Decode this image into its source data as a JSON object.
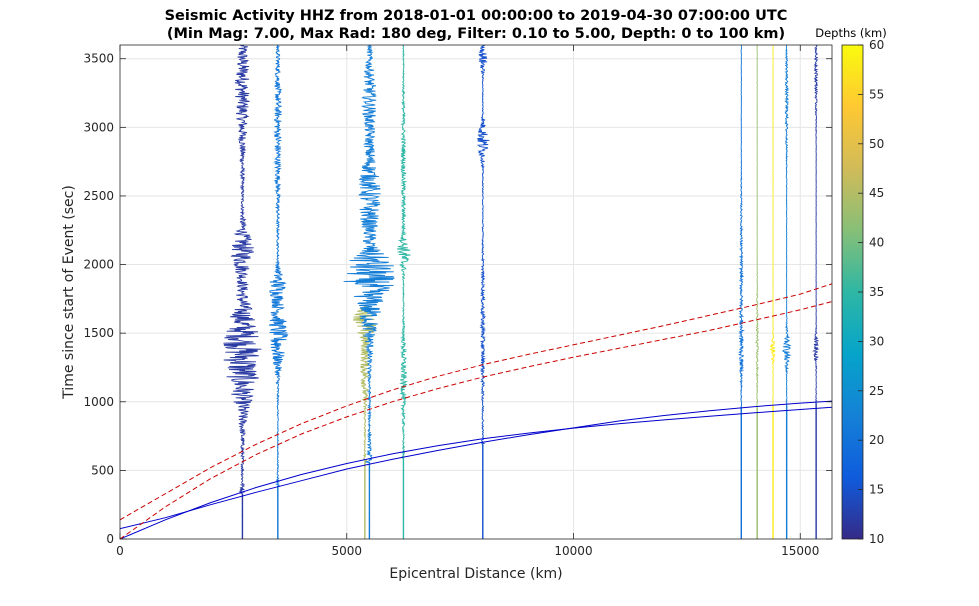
{
  "chart_data": {
    "type": "line",
    "title": "Seismic Activity HHZ from 2018-01-01 00:00:00 to 2019-04-30 07:00:00 UTC",
    "subtitle": "(Min Mag: 7.00, Max Rad: 180 deg, Filter: 0.10 to 5.00, Depth: 0 to 100 km)",
    "xlabel": "Epicentral Distance (km)",
    "ylabel": "Time since start of Event (sec)",
    "xlim": [
      0,
      15700
    ],
    "ylim": [
      0,
      3600
    ],
    "xticks": [
      0,
      5000,
      10000,
      15000
    ],
    "yticks": [
      0,
      500,
      1000,
      1500,
      2000,
      2500,
      3000,
      3500
    ],
    "grid": true,
    "colorbar": {
      "label": "Depths (km)",
      "range": [
        10,
        60
      ],
      "ticks": [
        10,
        15,
        20,
        25,
        30,
        35,
        40,
        45,
        50,
        55,
        60
      ],
      "colormap": "parula"
    },
    "traces": [
      {
        "distance_km": 2700,
        "depth_km": 12,
        "arrival_s": 330,
        "end_s": 3600,
        "amp_km": 420,
        "bursts": [
          [
            1350,
            380,
            1.0
          ],
          [
            2100,
            170,
            0.55
          ],
          [
            3300,
            450,
            0.35
          ]
        ]
      },
      {
        "distance_km": 3480,
        "depth_km": 21,
        "arrival_s": 390,
        "end_s": 3600,
        "amp_km": 230,
        "bursts": [
          [
            1500,
            250,
            0.9
          ],
          [
            1850,
            100,
            0.7
          ],
          [
            3000,
            600,
            0.3
          ]
        ]
      },
      {
        "distance_km": 5400,
        "depth_km": 45,
        "arrival_s": 560,
        "end_s": 1700,
        "amp_km": 260,
        "bursts": [
          [
            1580,
            110,
            1.0
          ],
          [
            1250,
            250,
            0.35
          ]
        ]
      },
      {
        "distance_km": 5500,
        "depth_km": 22,
        "arrival_s": 560,
        "end_s": 3600,
        "amp_km": 520,
        "bursts": [
          [
            1950,
            130,
            1.0
          ],
          [
            1750,
            300,
            0.5
          ],
          [
            2500,
            300,
            0.45
          ],
          [
            3200,
            300,
            0.25
          ]
        ]
      },
      {
        "distance_km": 6250,
        "depth_km": 35,
        "arrival_s": 590,
        "end_s": 3600,
        "amp_km": 200,
        "bursts": [
          [
            2080,
            100,
            0.75
          ],
          [
            1200,
            300,
            0.3
          ],
          [
            2700,
            500,
            0.2
          ]
        ]
      },
      {
        "distance_km": 8000,
        "depth_km": 15,
        "arrival_s": 690,
        "end_s": 3600,
        "amp_km": 180,
        "bursts": [
          [
            2900,
            120,
            0.8
          ],
          [
            3500,
            80,
            0.55
          ],
          [
            1500,
            500,
            0.2
          ]
        ]
      },
      {
        "distance_km": 13700,
        "depth_km": 20,
        "arrival_s": 950,
        "end_s": 3600,
        "amp_km": 80,
        "bursts": [
          [
            1400,
            250,
            0.5
          ],
          [
            2000,
            500,
            0.3
          ]
        ]
      },
      {
        "distance_km": 14050,
        "depth_km": 43,
        "arrival_s": 960,
        "end_s": 3600,
        "amp_km": 60,
        "bursts": [
          [
            1450,
            300,
            0.4
          ]
        ]
      },
      {
        "distance_km": 14400,
        "depth_km": 58,
        "arrival_s": 970,
        "end_s": 3600,
        "amp_km": 80,
        "bursts": [
          [
            1380,
            80,
            0.7
          ]
        ]
      },
      {
        "distance_km": 14700,
        "depth_km": 22,
        "arrival_s": 975,
        "end_s": 3600,
        "amp_km": 90,
        "bursts": [
          [
            1380,
            120,
            0.9
          ],
          [
            3200,
            400,
            0.3
          ]
        ]
      },
      {
        "distance_km": 15350,
        "depth_km": 12,
        "arrival_s": 990,
        "end_s": 3600,
        "amp_km": 70,
        "bursts": [
          [
            1380,
            100,
            0.8
          ],
          [
            3400,
            300,
            0.4
          ]
        ]
      }
    ],
    "curves": [
      {
        "name": "",
        "color": "#0000cc",
        "style": "solid",
        "x": [
          0,
          1000,
          2000,
          3000,
          4000,
          5000,
          6000,
          7000,
          8000,
          9000,
          10000,
          11000,
          12000,
          13000,
          14000,
          15000,
          15700
        ],
        "y": [
          0,
          140,
          265,
          375,
          470,
          550,
          620,
          680,
          730,
          772,
          808,
          840,
          868,
          895,
          920,
          944,
          960
        ]
      },
      {
        "name": "",
        "color": "#0000cc",
        "style": "solid",
        "x": [
          0,
          1000,
          2000,
          3000,
          4000,
          5000,
          6000,
          7000,
          8000,
          9000,
          10000,
          11000,
          12000,
          13000,
          14000,
          15000,
          15700
        ],
        "y": [
          75,
          155,
          250,
          340,
          425,
          510,
          580,
          645,
          705,
          760,
          810,
          860,
          900,
          935,
          965,
          990,
          1005
        ]
      },
      {
        "name": "",
        "color": "#cc0000",
        "style": "dashed",
        "x": [
          0,
          1000,
          2000,
          3000,
          4000,
          5000,
          6000,
          7000,
          8000,
          9000,
          10000,
          11000,
          12000,
          13000,
          14000,
          15000,
          15700
        ],
        "y": [
          0,
          235,
          440,
          615,
          765,
          890,
          1000,
          1095,
          1180,
          1255,
          1325,
          1390,
          1455,
          1520,
          1595,
          1670,
          1730
        ]
      },
      {
        "name": "",
        "color": "#cc0000",
        "style": "dashed",
        "x": [
          0,
          1000,
          2000,
          3000,
          4000,
          5000,
          6000,
          7000,
          8000,
          9000,
          10000,
          11000,
          12000,
          13000,
          14000,
          15000,
          15700
        ],
        "y": [
          140,
          330,
          520,
          690,
          840,
          970,
          1085,
          1185,
          1270,
          1345,
          1415,
          1485,
          1555,
          1630,
          1705,
          1785,
          1860
        ]
      }
    ]
  }
}
